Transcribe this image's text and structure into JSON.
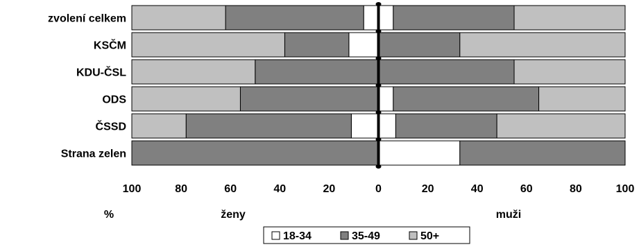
{
  "chart_data": {
    "type": "bar",
    "orientation": "horizontal",
    "stacked": true,
    "diverging": true,
    "categories": [
      "zvolení celkem",
      "KSČM",
      "KDU-ČSL",
      "ODS",
      "ČSSD",
      "Strana zelen"
    ],
    "left_group": "ženy",
    "right_group": "muži",
    "unit_label": "%",
    "xlim": [
      -100,
      100
    ],
    "x_ticks": [
      "100",
      "80",
      "60",
      "40",
      "20",
      "0",
      "20",
      "40",
      "60",
      "80",
      "100"
    ],
    "series": [
      {
        "name": "18-34",
        "color": "#ffffff",
        "zeny": [
          6,
          12,
          0,
          0,
          11,
          0
        ],
        "muzi": [
          6,
          0,
          0,
          6,
          7,
          33
        ]
      },
      {
        "name": "35-49",
        "color": "#808080",
        "zeny": [
          56,
          26,
          50,
          56,
          67,
          100
        ],
        "muzi": [
          49,
          33,
          55,
          59,
          41,
          67
        ]
      },
      {
        "name": "50+",
        "color": "#c0c0c0",
        "zeny": [
          38,
          62,
          50,
          44,
          22,
          0
        ],
        "muzi": [
          45,
          67,
          45,
          35,
          52,
          0
        ]
      }
    ],
    "legend_position": "bottom",
    "grid": false
  }
}
